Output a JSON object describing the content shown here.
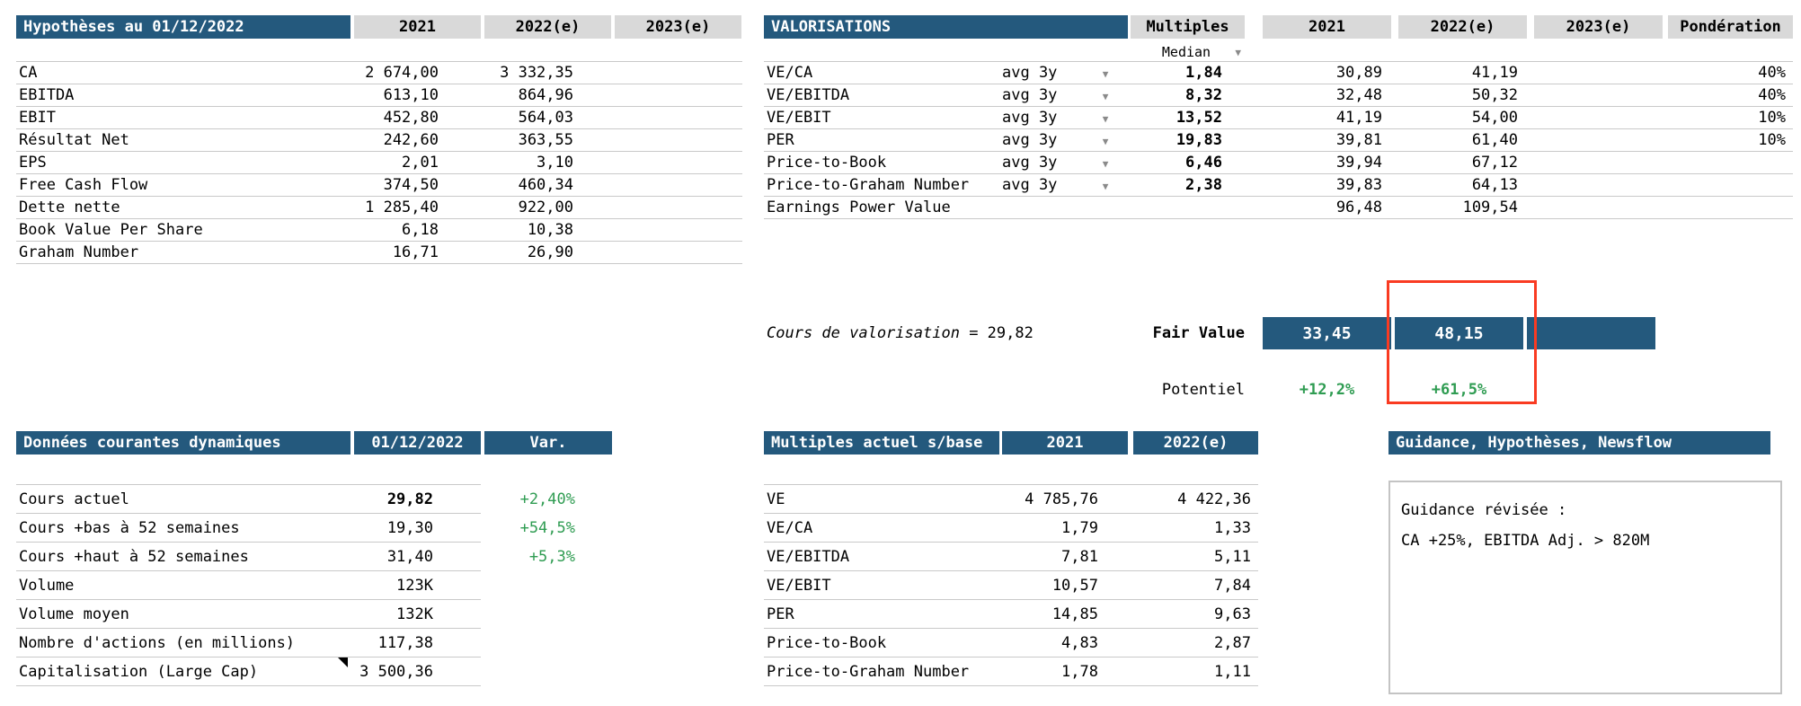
{
  "colors": {
    "header_blue": "#24597D",
    "header_gray": "#D9D9D9",
    "green": "#2F9C52",
    "red_box": "#F93B22",
    "line": "#C9C9C9"
  },
  "icons": {
    "dropdown": "▼"
  },
  "hypotheses": {
    "title": "Hypothèses au 01/12/2022",
    "columns": [
      "2021",
      "2022(e)",
      "2023(e)"
    ],
    "rows": [
      {
        "label": "CA",
        "y2021": "2 674,00",
        "y2022": "3 332,35",
        "y2023": ""
      },
      {
        "label": "EBITDA",
        "y2021": "613,10",
        "y2022": "864,96",
        "y2023": ""
      },
      {
        "label": "EBIT",
        "y2021": "452,80",
        "y2022": "564,03",
        "y2023": ""
      },
      {
        "label": "Résultat Net",
        "y2021": "242,60",
        "y2022": "363,55",
        "y2023": ""
      },
      {
        "label": "EPS",
        "y2021": "2,01",
        "y2022": "3,10",
        "y2023": ""
      },
      {
        "label": "Free Cash Flow",
        "y2021": "374,50",
        "y2022": "460,34",
        "y2023": ""
      },
      {
        "label": "Dette nette",
        "y2021": "1 285,40",
        "y2022": "922,00",
        "y2023": ""
      },
      {
        "label": "Book Value Per Share",
        "y2021": "6,18",
        "y2022": "10,38",
        "y2023": ""
      },
      {
        "label": "Graham Number",
        "y2021": "16,71",
        "y2022": "26,90",
        "y2023": ""
      }
    ]
  },
  "valorisations": {
    "title": "VALORISATIONS",
    "multiples_header": "Multiples",
    "median_selector": "Median",
    "columns": [
      "2021",
      "2022(e)",
      "2023(e)",
      "Pondération"
    ],
    "rows": [
      {
        "label": "VE/CA",
        "method": "avg 3y",
        "multiple": "1,84",
        "y2021": "30,89",
        "y2022": "41,19",
        "y2023": "",
        "pond": "40%"
      },
      {
        "label": "VE/EBITDA",
        "method": "avg 3y",
        "multiple": "8,32",
        "y2021": "32,48",
        "y2022": "50,32",
        "y2023": "",
        "pond": "40%"
      },
      {
        "label": "VE/EBIT",
        "method": "avg 3y",
        "multiple": "13,52",
        "y2021": "41,19",
        "y2022": "54,00",
        "y2023": "",
        "pond": "10%"
      },
      {
        "label": "PER",
        "method": "avg 3y",
        "multiple": "19,83",
        "y2021": "39,81",
        "y2022": "61,40",
        "y2023": "",
        "pond": "10%"
      },
      {
        "label": "Price-to-Book",
        "method": "avg 3y",
        "multiple": "6,46",
        "y2021": "39,94",
        "y2022": "67,12",
        "y2023": "",
        "pond": ""
      },
      {
        "label": "Price-to-Graham Number",
        "method": "avg 3y",
        "multiple": "2,38",
        "y2021": "39,83",
        "y2022": "64,13",
        "y2023": "",
        "pond": ""
      },
      {
        "label": "Earnings Power Value",
        "method": "",
        "multiple": "",
        "y2021": "96,48",
        "y2022": "109,54",
        "y2023": "",
        "pond": ""
      }
    ],
    "cours_label": "Cours de valorisation",
    "cours_value": "= 29,82",
    "fair_value_label": "Fair Value",
    "fair_values": [
      "33,45",
      "48,15",
      ""
    ],
    "potentiel_label": "Potentiel",
    "potentiels": [
      "+12,2%",
      "+61,5%",
      ""
    ]
  },
  "donnees": {
    "title": "Données courantes dynamiques",
    "columns": [
      "01/12/2022",
      "Var."
    ],
    "rows": [
      {
        "label": "Cours actuel",
        "value": "29,82",
        "var": "+2,40%"
      },
      {
        "label": "Cours +bas à 52 semaines",
        "value": "19,30",
        "var": "+54,5%"
      },
      {
        "label": "Cours +haut à 52 semaines",
        "value": "31,40",
        "var": "+5,3%"
      },
      {
        "label": "Volume",
        "value": "123K",
        "var": ""
      },
      {
        "label": "Volume moyen",
        "value": "132K",
        "var": ""
      },
      {
        "label": "Nombre d'actions (en millions)",
        "value": "117,38",
        "var": ""
      },
      {
        "label": "Capitalisation (Large Cap)",
        "value": "3 500,36",
        "var": ""
      }
    ]
  },
  "multiples_actuels": {
    "title": "Multiples actuel s/base",
    "columns": [
      "2021",
      "2022(e)"
    ],
    "rows": [
      {
        "label": "VE",
        "y2021": "4 785,76",
        "y2022": "4 422,36"
      },
      {
        "label": "VE/CA",
        "y2021": "1,79",
        "y2022": "1,33"
      },
      {
        "label": "VE/EBITDA",
        "y2021": "7,81",
        "y2022": "5,11"
      },
      {
        "label": "VE/EBIT",
        "y2021": "10,57",
        "y2022": "7,84"
      },
      {
        "label": "PER",
        "y2021": "14,85",
        "y2022": "9,63"
      },
      {
        "label": "Price-to-Book",
        "y2021": "4,83",
        "y2022": "2,87"
      },
      {
        "label": "Price-to-Graham Number",
        "y2021": "1,78",
        "y2022": "1,11"
      }
    ]
  },
  "guidance": {
    "title": "Guidance, Hypothèses, Newsflow",
    "lines": [
      "Guidance révisée :",
      "CA +25%, EBITDA Adj. > 820M"
    ]
  }
}
